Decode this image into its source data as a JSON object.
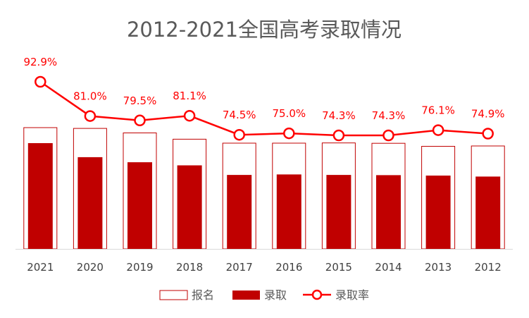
{
  "chart_data": {
    "type": "bar",
    "title": "2012-2021全国高考录取情况",
    "categories": [
      "2021",
      "2020",
      "2019",
      "2018",
      "2017",
      "2016",
      "2015",
      "2014",
      "2013",
      "2012"
    ],
    "series": [
      {
        "name": "报名",
        "type": "bar",
        "style": "outline",
        "values": [
          1078,
          1071,
          1031,
          975,
          940,
          940,
          942,
          939,
          912,
          915
        ]
      },
      {
        "name": "录取",
        "type": "bar",
        "style": "filled",
        "values": [
          1001,
          868,
          820,
          791,
          700,
          705,
          700,
          698,
          694,
          685
        ]
      },
      {
        "name": "录取率",
        "type": "line",
        "marker": "circle",
        "values": [
          92.9,
          81.0,
          79.5,
          81.1,
          74.5,
          75.0,
          74.3,
          74.3,
          76.1,
          74.9
        ],
        "labels": [
          "92.9%",
          "81.0%",
          "79.5%",
          "81.1%",
          "74.5%",
          "75.0%",
          "74.3%",
          "74.3%",
          "76.1%",
          "74.9%"
        ]
      }
    ],
    "legend": {
      "position": "bottom",
      "items": [
        "报名",
        "录取",
        "录取率"
      ]
    },
    "grid": false,
    "colors": {
      "outline": "#c00000",
      "fill": "#c00000",
      "line": "#ff0000",
      "axis": "#d9d9d9",
      "title": "#595959"
    }
  }
}
